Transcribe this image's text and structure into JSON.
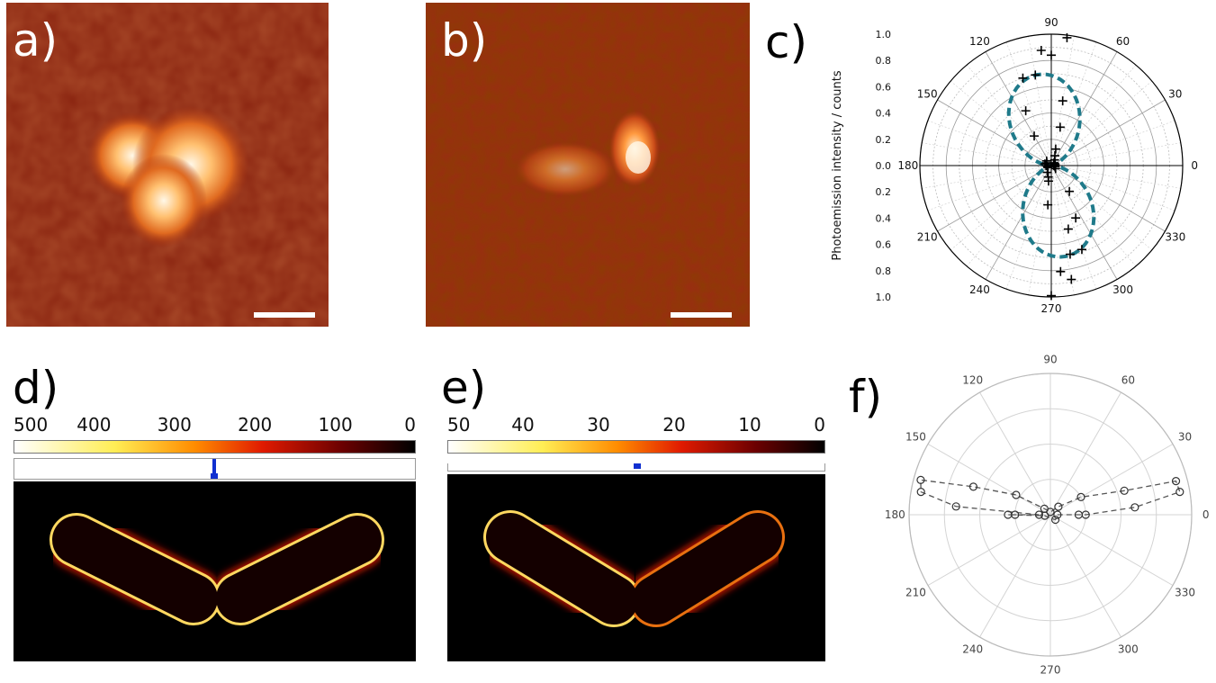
{
  "panels": {
    "a": {
      "label": "a)"
    },
    "b": {
      "label": "b)"
    },
    "c": {
      "label": "c)"
    },
    "d": {
      "label": "d)",
      "colorbar_ticks": [
        "500",
        "400",
        "300",
        "200",
        "100",
        "0"
      ],
      "marker_position": 0.5
    },
    "e": {
      "label": "e)",
      "colorbar_ticks": [
        "50",
        "40",
        "30",
        "20",
        "10",
        "0"
      ],
      "marker_position": 0.5
    },
    "f": {
      "label": "f)"
    }
  },
  "colors": {
    "heatmap_low": "#6a1a08",
    "heatmap_high": "#fff8e0",
    "fit_line": "#1f7a8a",
    "marker": "#1030d0",
    "gridline": "#cccccc"
  },
  "chart_data": [
    {
      "id": "c",
      "type": "scatter",
      "coordinate_system": "polar",
      "ylabel": "Photoemission intensity / counts",
      "angle_ticks": [
        "0",
        "30",
        "60",
        "90",
        "120",
        "150",
        "180",
        "210",
        "240",
        "270",
        "300",
        "330"
      ],
      "radial_ticks": [
        "0.0",
        "0.2",
        "0.4",
        "0.6",
        "0.8",
        "1.0"
      ],
      "rlim": [
        0,
        1.0
      ],
      "grid": true,
      "series": [
        {
          "kind": "points",
          "marker": "plus",
          "points": [
            {
              "theta": 0,
              "r": 0.02
            },
            {
              "theta": 10,
              "r": 0.03
            },
            {
              "theta": 20,
              "r": 0.02
            },
            {
              "theta": 30,
              "r": 0.03
            },
            {
              "theta": 45,
              "r": 0.03
            },
            {
              "theta": 60,
              "r": 0.05
            },
            {
              "theta": 70,
              "r": 0.08
            },
            {
              "theta": 75,
              "r": 0.13
            },
            {
              "theta": 77,
              "r": 0.3
            },
            {
              "theta": 80,
              "r": 0.5
            },
            {
              "theta": 83,
              "r": 0.98
            },
            {
              "theta": 90,
              "r": 0.84
            },
            {
              "theta": 95,
              "r": 0.88
            },
            {
              "theta": 100,
              "r": 0.7
            },
            {
              "theta": 108,
              "r": 0.7
            },
            {
              "theta": 115,
              "r": 0.46
            },
            {
              "theta": 120,
              "r": 0.26
            },
            {
              "theta": 135,
              "r": 0.05
            },
            {
              "theta": 150,
              "r": 0.04
            },
            {
              "theta": 165,
              "r": 0.05
            },
            {
              "theta": 180,
              "r": 0.04
            },
            {
              "theta": 195,
              "r": 0.03
            },
            {
              "theta": 210,
              "r": 0.03
            },
            {
              "theta": 240,
              "r": 0.06
            },
            {
              "theta": 255,
              "r": 0.09
            },
            {
              "theta": 260,
              "r": 0.12
            },
            {
              "theta": 265,
              "r": 0.3
            },
            {
              "theta": 270,
              "r": 0.99
            },
            {
              "theta": 275,
              "r": 0.81
            },
            {
              "theta": 280,
              "r": 0.88
            },
            {
              "theta": 282,
              "r": 0.69
            },
            {
              "theta": 285,
              "r": 0.5
            },
            {
              "theta": 290,
              "r": 0.68
            },
            {
              "theta": 295,
              "r": 0.44
            },
            {
              "theta": 305,
              "r": 0.24
            },
            {
              "theta": 325,
              "r": 0.04
            },
            {
              "theta": 345,
              "r": 0.03
            }
          ]
        },
        {
          "kind": "fit",
          "line": "dashed",
          "peak_theta": 98,
          "peak_r": 0.7
        }
      ]
    },
    {
      "id": "f",
      "type": "line",
      "coordinate_system": "polar",
      "angle_ticks": [
        "0",
        "30",
        "60",
        "90",
        "120",
        "150",
        "180",
        "210",
        "240",
        "270",
        "300",
        "330"
      ],
      "rlim": [
        0,
        1.0
      ],
      "grid": true,
      "series": [
        {
          "kind": "points",
          "marker": "circle",
          "line": "dashed",
          "points": [
            {
              "theta": 0,
              "r": 0.05
            },
            {
              "theta": 0,
              "r": 0.2
            },
            {
              "theta": 0,
              "r": 0.25
            },
            {
              "theta": 5,
              "r": 0.6
            },
            {
              "theta": 10,
              "r": 0.93
            },
            {
              "theta": 15,
              "r": 0.92
            },
            {
              "theta": 18,
              "r": 0.55
            },
            {
              "theta": 30,
              "r": 0.25
            },
            {
              "theta": 45,
              "r": 0.08
            },
            {
              "theta": 90,
              "r": 0.02
            },
            {
              "theta": 135,
              "r": 0.06
            },
            {
              "theta": 150,
              "r": 0.28
            },
            {
              "theta": 160,
              "r": 0.58
            },
            {
              "theta": 165,
              "r": 0.95
            },
            {
              "theta": 170,
              "r": 0.93
            },
            {
              "theta": 175,
              "r": 0.67
            },
            {
              "theta": 180,
              "r": 0.3
            },
            {
              "theta": 180,
              "r": 0.25
            },
            {
              "theta": 180,
              "r": 0.08
            },
            {
              "theta": 190,
              "r": 0.04
            },
            {
              "theta": 315,
              "r": 0.05
            }
          ]
        }
      ]
    }
  ]
}
